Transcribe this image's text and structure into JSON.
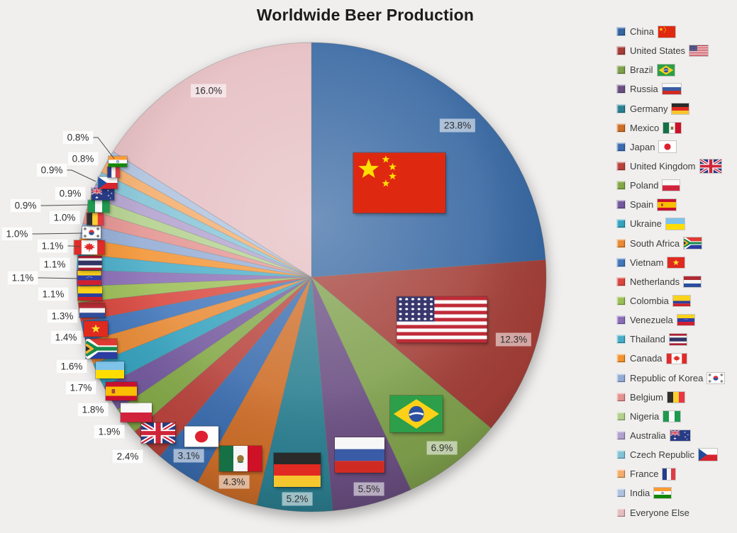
{
  "title": "Worldwide Beer Production",
  "background_color": "#F0EFEE",
  "chart_data": {
    "type": "pie",
    "title": "Worldwide Beer Production",
    "legend_position": "right",
    "start_angle_deg": -90,
    "direction": "clockwise",
    "units": "percent share of worldwide beer production",
    "slices": [
      {
        "label": "China",
        "value": 23.8,
        "display": "23.8%",
        "color": "#3566A1",
        "flag_icon": "china-flag"
      },
      {
        "label": "United States",
        "value": 12.3,
        "display": "12.3%",
        "color": "#A33E37",
        "flag_icon": "united-states-flag"
      },
      {
        "label": "Brazil",
        "value": 6.9,
        "display": "6.9%",
        "color": "#7FA04C",
        "flag_icon": "brazil-flag"
      },
      {
        "label": "Russia",
        "value": 5.5,
        "display": "5.5%",
        "color": "#6B4F82",
        "flag_icon": "russia-flag"
      },
      {
        "label": "Germany",
        "value": 5.2,
        "display": "5.2%",
        "color": "#2C8092",
        "flag_icon": "germany-flag"
      },
      {
        "label": "Mexico",
        "value": 4.3,
        "display": "4.3%",
        "color": "#CE6E29",
        "flag_icon": "mexico-flag"
      },
      {
        "label": "Japan",
        "value": 3.1,
        "display": "3.1%",
        "color": "#3A6CAE",
        "flag_icon": "japan-flag"
      },
      {
        "label": "United Kingdom",
        "value": 2.4,
        "display": "2.4%",
        "color": "#B8433C",
        "flag_icon": "united-kingdom-flag"
      },
      {
        "label": "Poland",
        "value": 1.9,
        "display": "1.9%",
        "color": "#84A848",
        "flag_icon": "poland-flag"
      },
      {
        "label": "Spain",
        "value": 1.8,
        "display": "1.8%",
        "color": "#74599E",
        "flag_icon": "spain-flag"
      },
      {
        "label": "Ukraine",
        "value": 1.7,
        "display": "1.7%",
        "color": "#36A2BE",
        "flag_icon": "ukraine-flag"
      },
      {
        "label": "South Africa",
        "value": 1.6,
        "display": "1.6%",
        "color": "#E88B36",
        "flag_icon": "south-africa-flag"
      },
      {
        "label": "Vietnam",
        "value": 1.4,
        "display": "1.4%",
        "color": "#4377BB",
        "flag_icon": "vietnam-flag"
      },
      {
        "label": "Netherlands",
        "value": 1.3,
        "display": "1.3%",
        "color": "#D8483F",
        "flag_icon": "netherlands-flag"
      },
      {
        "label": "Colombia",
        "value": 1.1,
        "display": "1.1%",
        "color": "#9CBE57",
        "flag_icon": "colombia-flag"
      },
      {
        "label": "Venezuela",
        "value": 1.1,
        "display": "1.1%",
        "color": "#8A6FB6",
        "flag_icon": "venezuela-flag"
      },
      {
        "label": "Thailand",
        "value": 1.1,
        "display": "1.1%",
        "color": "#49ACC7",
        "flag_icon": "thailand-flag"
      },
      {
        "label": "Canada",
        "value": 1.1,
        "display": "1.1%",
        "color": "#F39434",
        "flag_icon": "canada-flag"
      },
      {
        "label": "Republic of Korea",
        "value": 1.0,
        "display": "1.0%",
        "color": "#93ACD4",
        "flag_icon": "republic-of-korea-flag"
      },
      {
        "label": "Belgium",
        "value": 1.0,
        "display": "1.0%",
        "color": "#E39390",
        "flag_icon": "belgium-flag"
      },
      {
        "label": "Nigeria",
        "value": 0.9,
        "display": "0.9%",
        "color": "#B3D08D",
        "flag_icon": "nigeria-flag"
      },
      {
        "label": "Australia",
        "value": 0.9,
        "display": "0.9%",
        "color": "#B1A1CE",
        "flag_icon": "australia-flag"
      },
      {
        "label": "Czech Republic",
        "value": 0.9,
        "display": "0.9%",
        "color": "#84C3D6",
        "flag_icon": "czech-republic-flag"
      },
      {
        "label": "France",
        "value": 0.8,
        "display": "0.8%",
        "color": "#F3AD6C",
        "flag_icon": "france-flag"
      },
      {
        "label": "India",
        "value": 0.8,
        "display": "0.8%",
        "color": "#AEC2DE",
        "flag_icon": "india-flag"
      },
      {
        "label": "Everyone Else",
        "value": 16.0,
        "display": "16.0%",
        "color": "#E5BDC1",
        "flag_icon": null
      }
    ]
  }
}
